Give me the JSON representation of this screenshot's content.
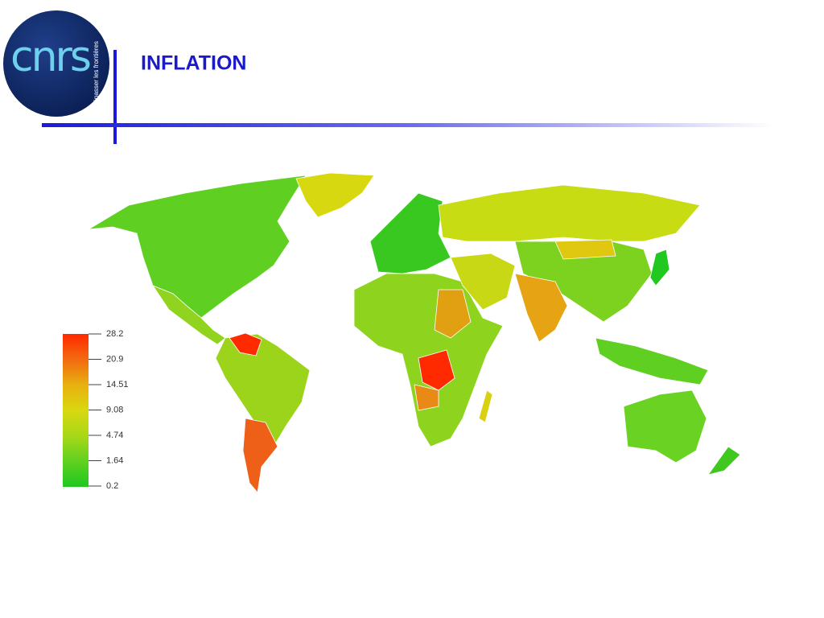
{
  "header": {
    "title": "INFLATION",
    "logo": {
      "text": "cnrs",
      "tagline": "dépasser les frontières"
    }
  },
  "legend": {
    "ticks": [
      28.2,
      20.9,
      14.51,
      9.08,
      4.74,
      1.64,
      0.2
    ],
    "colors": [
      "#ff2a00",
      "#f26a10",
      "#e8b010",
      "#d8d810",
      "#a8d818",
      "#60d020",
      "#20c820"
    ]
  }
}
